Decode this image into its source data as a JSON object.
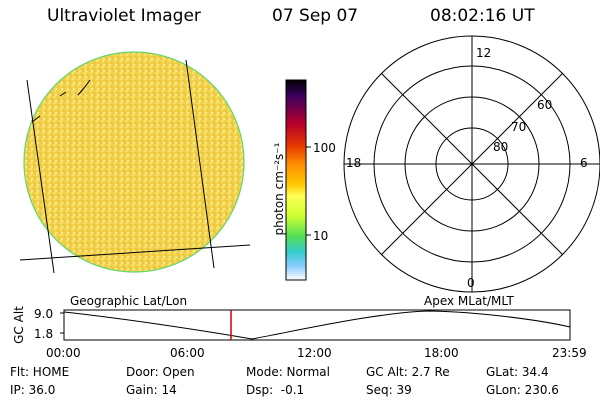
{
  "header": {
    "instrument": "Ultraviolet Imager",
    "date": "07 Sep 07",
    "time": "08:02:16 UT"
  },
  "imager_panel": {
    "fill_color": "#f2d24a",
    "limb_color": "#63d56b"
  },
  "colorbar": {
    "unit_label": "photon cm⁻²s⁻¹",
    "ticks": [
      "100",
      "10"
    ],
    "colors": [
      "#000000",
      "#3d0060",
      "#b8002a",
      "#e63a00",
      "#ff8c00",
      "#ffc700",
      "#ffff55",
      "#ccff33",
      "#55dd55",
      "#33cccc",
      "#88ccff",
      "#ffffff"
    ]
  },
  "polar_plot": {
    "mlt_labels": {
      "top": "12",
      "left": "18",
      "right": "6",
      "bottom": "0"
    },
    "lat_labels": [
      "60",
      "70",
      "80"
    ]
  },
  "orbit_strip": {
    "left_title": "Geographic Lat/Lon",
    "right_title": "Apex MLat/MLT",
    "y_axis_label": "GC Alt",
    "y_ticks": [
      "9.0",
      "1.8"
    ],
    "x_ticks": [
      "00:00",
      "06:00",
      "12:00",
      "18:00",
      "23:59"
    ],
    "marker_color": "#cc0000"
  },
  "status": {
    "row1": {
      "filter": "Flt: HOME",
      "door": "Door: Open",
      "mode": "Mode: Normal",
      "gc_alt": "GC Alt: 2.7 Re",
      "glat": "GLat: 34.4"
    },
    "row2": {
      "ip": "IP: 36.0",
      "gain": "Gain: 14",
      "dsp": "Dsp:  -0.1",
      "seq": "Seq: 39",
      "glon": "GLon: 230.6"
    }
  }
}
